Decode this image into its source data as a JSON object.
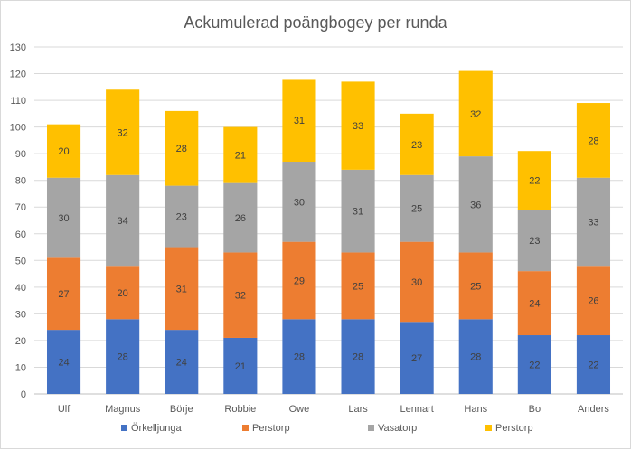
{
  "chart_data": {
    "type": "bar",
    "stacked": true,
    "title": "Ackumulerad poängbogey per runda",
    "categories": [
      "Ulf",
      "Magnus",
      "Börje",
      "Robbie",
      "Owe",
      "Lars",
      "Lennart",
      "Hans",
      "Bo",
      "Anders"
    ],
    "ylim": [
      0,
      130
    ],
    "yticks": [
      0,
      10,
      20,
      30,
      40,
      50,
      60,
      70,
      80,
      90,
      100,
      110,
      120,
      130
    ],
    "grid": true,
    "legend_position": "bottom",
    "series": [
      {
        "name": "Örkelljunga",
        "color": "#4472c4",
        "values": [
          24,
          28,
          24,
          21,
          28,
          28,
          27,
          28,
          22,
          22
        ]
      },
      {
        "name": "Perstorp",
        "color": "#ed7d31",
        "values": [
          27,
          20,
          31,
          32,
          29,
          25,
          30,
          25,
          24,
          26
        ]
      },
      {
        "name": "Vasatorp",
        "color": "#a5a5a5",
        "values": [
          30,
          34,
          23,
          26,
          30,
          31,
          25,
          36,
          23,
          33
        ]
      },
      {
        "name": "Perstorp",
        "color": "#ffc000",
        "values": [
          20,
          32,
          28,
          21,
          31,
          33,
          23,
          32,
          22,
          28
        ]
      }
    ]
  }
}
